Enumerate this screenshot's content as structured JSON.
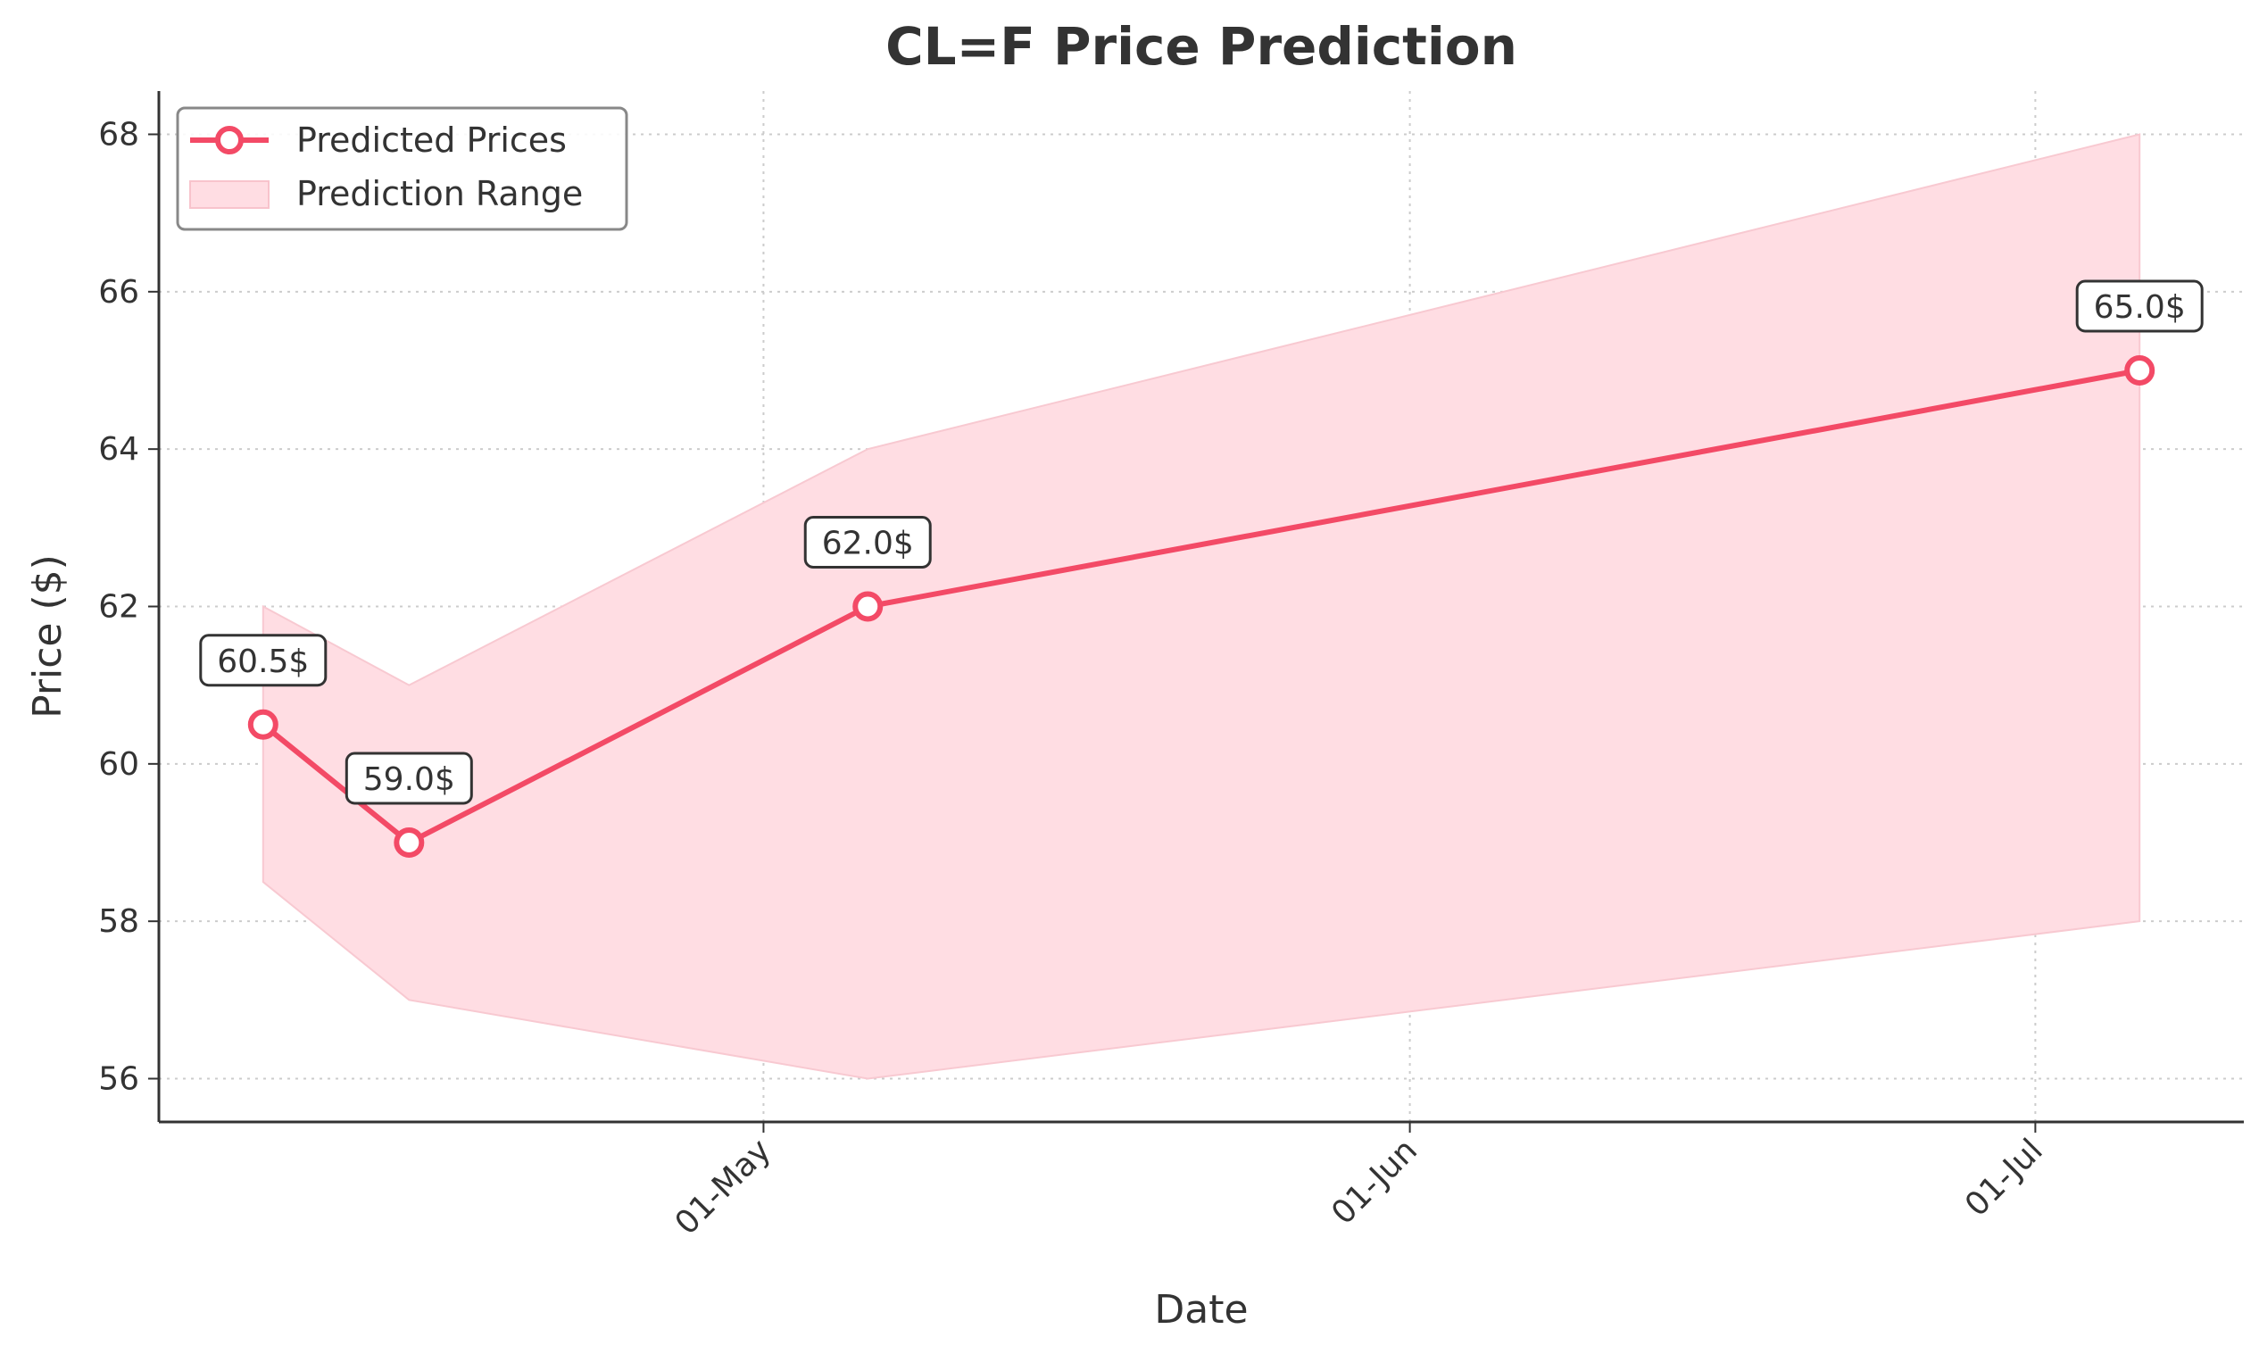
{
  "chart_data": {
    "type": "line",
    "title": "CL=F Price Prediction",
    "xlabel": "Date",
    "ylabel": "Price ($)",
    "x": [
      "2025-04-07",
      "2025-04-14",
      "2025-05-06",
      "2025-07-06"
    ],
    "series": [
      {
        "name": "Predicted Prices",
        "values": [
          60.5,
          59.0,
          62.0,
          65.0
        ],
        "color": "#f34a66"
      }
    ],
    "band": {
      "name": "Prediction Range",
      "lower": [
        58.5,
        57.0,
        56.0,
        58.0
      ],
      "upper": [
        62.0,
        61.0,
        64.0,
        68.0
      ],
      "color": "#ffdde3"
    },
    "data_labels": [
      "60.5$",
      "59.0$",
      "62.0$",
      "65.0$"
    ],
    "ylim": [
      55.45,
      68.55
    ],
    "xlim": [
      "2025-04-02",
      "2025-07-11"
    ],
    "yticks": [
      56,
      58,
      60,
      62,
      64,
      66,
      68
    ],
    "ytick_labels": [
      "56",
      "58",
      "60",
      "62",
      "64",
      "66",
      "68"
    ],
    "xticks": [
      "2025-05-01",
      "2025-06-01",
      "2025-07-01"
    ],
    "xtick_labels": [
      "01-May",
      "01-Jun",
      "01-Jul"
    ],
    "grid": true,
    "legend_position": "top-left"
  }
}
